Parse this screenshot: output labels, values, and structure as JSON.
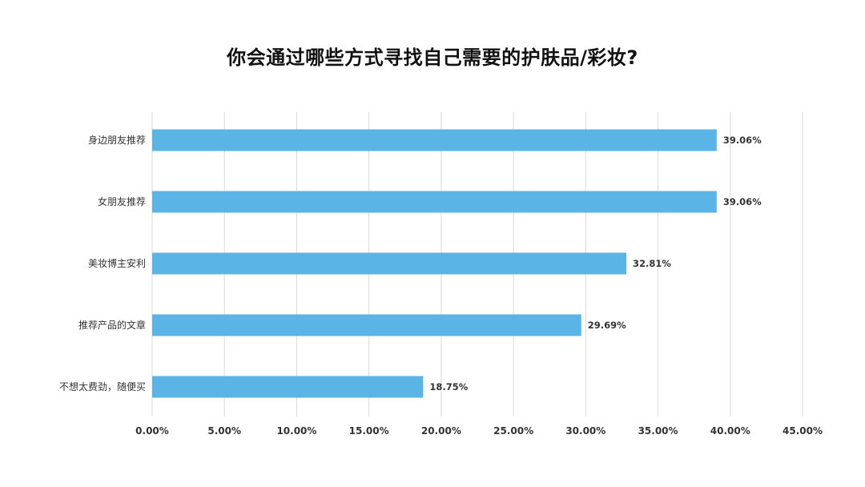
{
  "chart_data": {
    "type": "bar",
    "orientation": "horizontal",
    "title": "你会通过哪些方式寻找自己需要的护肤品/彩妆?",
    "categories": [
      "身边朋友推荐",
      "女朋友推荐",
      "美妆博主安利",
      "推荐产品的文章",
      "不想太费劲，随便买"
    ],
    "values": [
      39.06,
      39.06,
      32.81,
      29.69,
      18.75
    ],
    "value_labels": [
      "39.06%",
      "39.06%",
      "32.81%",
      "29.69%",
      "18.75%"
    ],
    "xlim": [
      0,
      45
    ],
    "xticks": [
      0,
      5,
      10,
      15,
      20,
      25,
      30,
      35,
      40,
      45
    ],
    "xtick_labels": [
      "0.00%",
      "5.00%",
      "10.00%",
      "15.00%",
      "20.00%",
      "25.00%",
      "30.00%",
      "35.00%",
      "40.00%",
      "45.00%"
    ],
    "xlabel": "",
    "ylabel": "",
    "grid": "vertical",
    "legend": "none",
    "colors": {
      "bar": "#5ab4e5",
      "grid": "#d9d9d9",
      "text": "#333333"
    }
  }
}
